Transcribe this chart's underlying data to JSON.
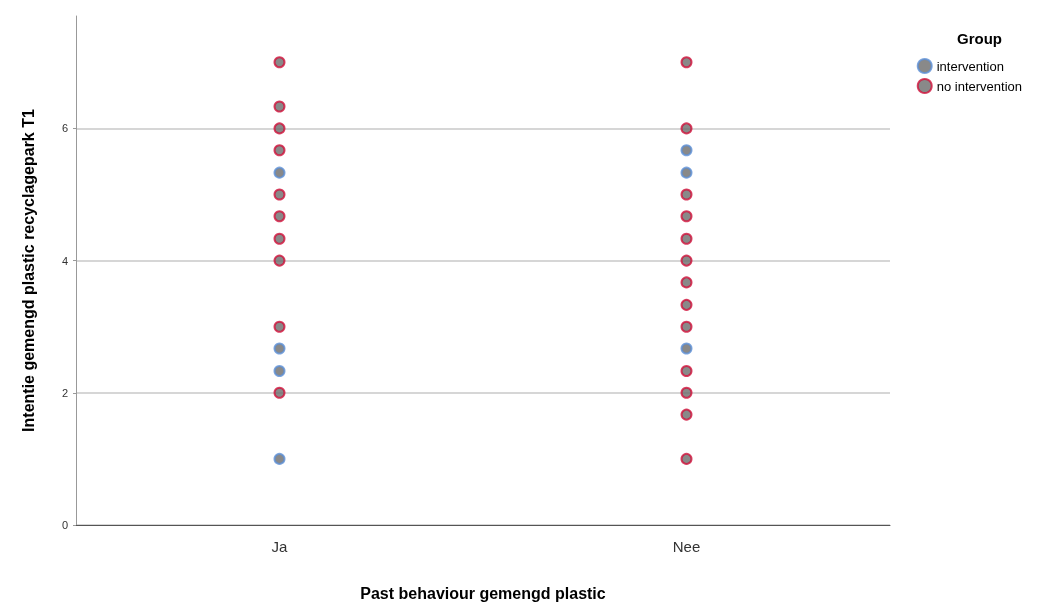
{
  "chart_data": {
    "type": "scatter",
    "xlabel": "Past behaviour gemengd plastic",
    "ylabel": "Intentie gemengd plastic recyclagepark T1",
    "legend_title": "Group",
    "categories": [
      "Ja",
      "Nee"
    ],
    "series": [
      {
        "name": "intervention",
        "color": "#5b8fd6",
        "x": [
          "Ja",
          "Ja",
          "Ja",
          "Ja",
          "Nee",
          "Nee",
          "Nee"
        ],
        "values": [
          5.33,
          2.67,
          2.33,
          1,
          5.67,
          5.33,
          2.67
        ]
      },
      {
        "name": "no intervention",
        "color": "#d0103a",
        "x": [
          "Ja",
          "Ja",
          "Ja",
          "Ja",
          "Ja",
          "Ja",
          "Ja",
          "Ja",
          "Ja",
          "Ja",
          "Nee",
          "Nee",
          "Nee",
          "Nee",
          "Nee",
          "Nee",
          "Nee",
          "Nee",
          "Nee",
          "Nee",
          "Nee",
          "Nee",
          "Nee"
        ],
        "values": [
          7,
          6.33,
          6,
          5.67,
          5,
          4.67,
          4.33,
          4,
          3,
          2,
          7,
          6,
          5,
          4.67,
          4.33,
          4,
          3.67,
          3.33,
          3,
          2.33,
          2,
          1.67,
          1
        ]
      }
    ],
    "ylim": [
      0,
      7.7
    ],
    "yticks": [
      0,
      2,
      4,
      6
    ],
    "grid": "y",
    "legend": "top right",
    "marker": "circle"
  }
}
